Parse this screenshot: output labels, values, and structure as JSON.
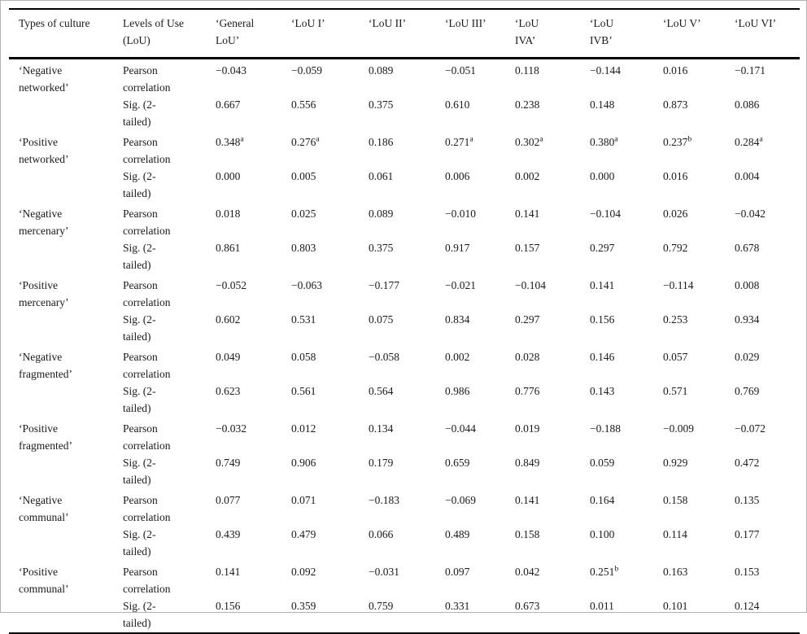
{
  "page": {
    "background": "#ffffff",
    "frame_color": "#b4b4b4",
    "rule_color": "#000000",
    "text_color": "#1a1a1a"
  },
  "table": {
    "headers": [
      {
        "id": "types-of-culture",
        "label": "Types of culture"
      },
      {
        "id": "levels-of-use",
        "label": "Levels of Use\n(LoU)"
      },
      {
        "id": "general-lou",
        "label": "‘General\nLoU’"
      },
      {
        "id": "lou-i",
        "label": "‘LoU I’"
      },
      {
        "id": "lou-ii",
        "label": "‘LoU II’"
      },
      {
        "id": "lou-iii",
        "label": "‘LoU III’"
      },
      {
        "id": "lou-iva",
        "label": "‘LoU\nIVA’"
      },
      {
        "id": "lou-ivb",
        "label": "‘LoU\nIVB’"
      },
      {
        "id": "lou-v",
        "label": "‘LoU V’"
      },
      {
        "id": "lou-vi",
        "label": "‘LoU VI’"
      }
    ],
    "measure_labels": {
      "pearson": "Pearson\ncorrelation",
      "sig": "Sig. (2-\ntailed)"
    },
    "rows": [
      {
        "culture": "‘Negative\nnetworked’",
        "pearson": [
          "−0.043",
          "−0.059",
          "0.089",
          "−0.051",
          "0.118",
          "−0.144",
          "0.016",
          "−0.171"
        ],
        "sig": [
          "0.667",
          "0.556",
          "0.375",
          "0.610",
          "0.238",
          "0.148",
          "0.873",
          "0.086"
        ]
      },
      {
        "culture": "‘Positive\nnetworked’",
        "pearson": [
          "0.348^a",
          "0.276^a",
          "0.186",
          "0.271^a",
          "0.302^a",
          "0.380^a",
          "0.237^b",
          "0.284^a"
        ],
        "sig": [
          "0.000",
          "0.005",
          "0.061",
          "0.006",
          "0.002",
          "0.000",
          "0.016",
          "0.004"
        ]
      },
      {
        "culture": "‘Negative\nmercenary’",
        "pearson": [
          "0.018",
          "0.025",
          "0.089",
          "−0.010",
          "0.141",
          "−0.104",
          "0.026",
          "−0.042"
        ],
        "sig": [
          "0.861",
          "0.803",
          "0.375",
          "0.917",
          "0.157",
          "0.297",
          "0.792",
          "0.678"
        ]
      },
      {
        "culture": "‘Positive\nmercenary’",
        "pearson": [
          "−0.052",
          "−0.063",
          "−0.177",
          "−0.021",
          "−0.104",
          "0.141",
          "−0.114",
          "0.008"
        ],
        "sig": [
          "0.602",
          "0.531",
          "0.075",
          "0.834",
          "0.297",
          "0.156",
          "0.253",
          "0.934"
        ]
      },
      {
        "culture": "‘Negative\nfragmented’",
        "pearson": [
          "0.049",
          "0.058",
          "−0.058",
          "0.002",
          "0.028",
          "0.146",
          "0.057",
          "0.029"
        ],
        "sig": [
          "0.623",
          "0.561",
          "0.564",
          "0.986",
          "0.776",
          "0.143",
          "0.571",
          "0.769"
        ]
      },
      {
        "culture": "‘Positive\nfragmented’",
        "pearson": [
          "−0.032",
          "0.012",
          "0.134",
          "−0.044",
          "0.019",
          "−0.188",
          "−0.009",
          "−0.072"
        ],
        "sig": [
          "0.749",
          "0.906",
          "0.179",
          "0.659",
          "0.849",
          "0.059",
          "0.929",
          "0.472"
        ]
      },
      {
        "culture": "‘Negative\ncommunal’",
        "pearson": [
          "0.077",
          "0.071",
          "−0.183",
          "−0.069",
          "0.141",
          "0.164",
          "0.158",
          "0.135"
        ],
        "sig": [
          "0.439",
          "0.479",
          "0.066",
          "0.489",
          "0.158",
          "0.100",
          "0.114",
          "0.177"
        ]
      },
      {
        "culture": "‘Positive\ncommunal’",
        "pearson": [
          "0.141",
          "0.092",
          "−0.031",
          "0.097",
          "0.042",
          "0.251^b",
          "0.163",
          "0.153"
        ],
        "sig": [
          "0.156",
          "0.359",
          "0.759",
          "0.331",
          "0.673",
          "0.011",
          "0.101",
          "0.124"
        ]
      }
    ]
  }
}
